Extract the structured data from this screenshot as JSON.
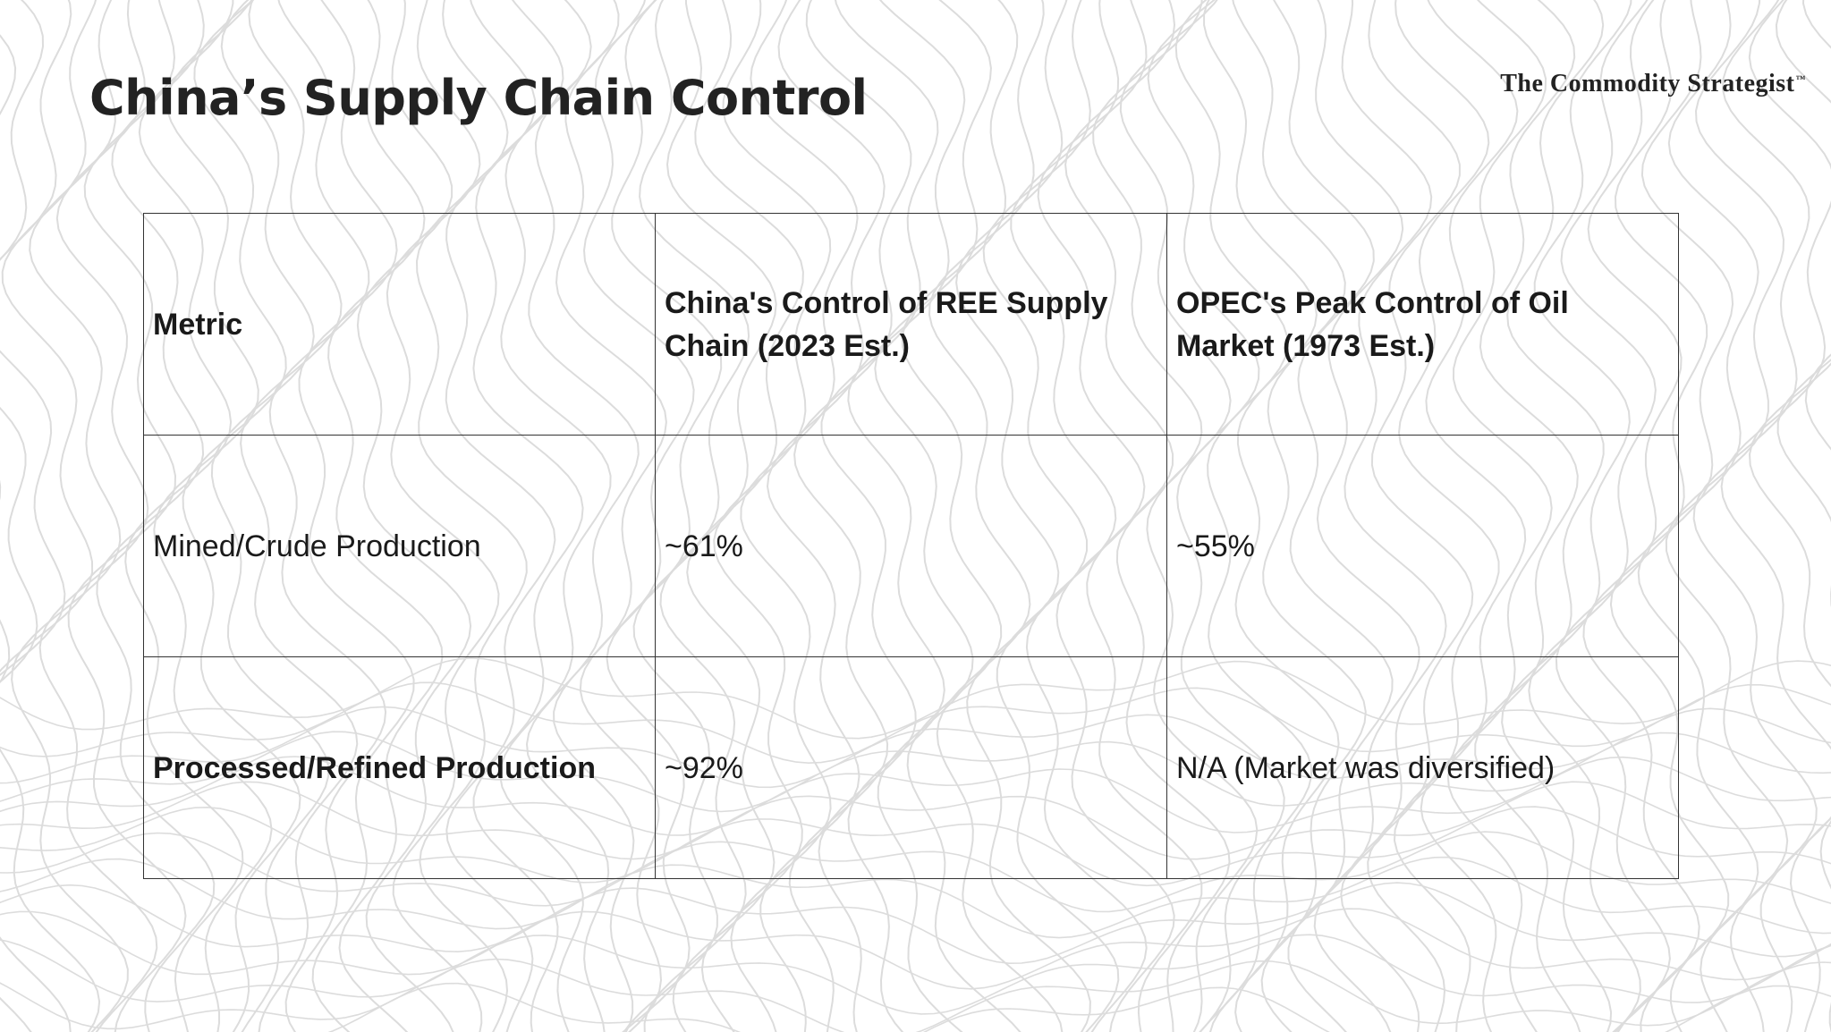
{
  "slide": {
    "title": "China’s Supply Chain Control",
    "brand": "The Commodity Strategist",
    "brand_mark": "™"
  },
  "table": {
    "headers": [
      "Metric",
      "China's Control of REE Supply Chain (2023 Est.)",
      "OPEC's Peak Control of Oil Market (1973 Est.)"
    ],
    "rows": [
      [
        "Mined/Crude Production",
        "~61%",
        "~55%"
      ],
      [
        "Processed/Refined Production",
        "~92%",
        "N/A (Market was diversified)"
      ]
    ]
  },
  "colors": {
    "background": "#ffffff",
    "text": "#1a1a1a",
    "border": "#333333",
    "contour_lines": "#dcdcdc"
  }
}
